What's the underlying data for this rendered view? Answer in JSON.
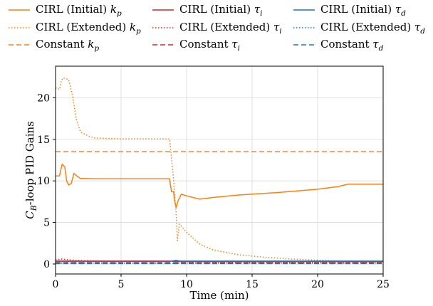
{
  "chart_data": {
    "type": "line",
    "title": "",
    "xlabel": "Time (min)",
    "ylabel": "C_B-loop PID Gains",
    "ylabel_parts": {
      "base": "C",
      "sub": "B",
      "rest": "-loop PID Gains"
    },
    "xlim": [
      0,
      25
    ],
    "ylim": [
      -1.2,
      23.8
    ],
    "xticks": [
      0,
      5,
      10,
      15,
      20,
      25
    ],
    "yticks": [
      0,
      5,
      10,
      15,
      20
    ],
    "grid": true,
    "legend_position": "top",
    "colors": {
      "orange": "#ff7f0e",
      "red": "#d62728",
      "blue": "#1f77b4"
    },
    "series": [
      {
        "name": "CIRL (Initial) k_p",
        "label_base": "CIRL (Initial) ",
        "label_sym": "k",
        "label_sub": "p",
        "color": "#ff7f0e",
        "dash": "solid",
        "x": [
          0,
          0.3,
          0.5,
          0.7,
          0.85,
          1.0,
          1.2,
          1.4,
          1.7,
          1.9,
          2.1,
          3,
          5,
          8.7,
          8.85,
          9.0,
          9.1,
          9.2,
          9.35,
          9.6,
          10,
          11,
          12,
          14,
          17,
          20,
          21.5,
          22.3,
          23,
          25
        ],
        "y": [
          10.6,
          10.6,
          12.0,
          11.7,
          10.0,
          9.5,
          9.7,
          10.9,
          10.5,
          10.3,
          10.3,
          10.25,
          10.25,
          10.25,
          8.7,
          8.7,
          7.5,
          6.8,
          7.6,
          8.4,
          8.2,
          7.8,
          8.0,
          8.3,
          8.6,
          9.0,
          9.3,
          9.6,
          9.6,
          9.6
        ]
      },
      {
        "name": "CIRL (Extended) k_p",
        "label_base": "CIRL (Extended) ",
        "label_sym": "k",
        "label_sub": "p",
        "color": "#ff7f0e",
        "dash": "dotted",
        "x": [
          0,
          0.3,
          0.45,
          0.6,
          0.75,
          1.0,
          1.3,
          1.6,
          1.9,
          2.5,
          3,
          5,
          8.7,
          9.0,
          9.2,
          9.3,
          9.45,
          9.7,
          10,
          11,
          12,
          14,
          16,
          18,
          20,
          22,
          25
        ],
        "y": [
          21.2,
          21.0,
          22.1,
          22.4,
          22.3,
          22.2,
          20.2,
          17.3,
          15.9,
          15.4,
          15.15,
          15.05,
          15.05,
          10.3,
          6.2,
          2.8,
          4.8,
          4.4,
          3.8,
          2.4,
          1.7,
          1.1,
          0.8,
          0.6,
          0.45,
          0.35,
          0.25
        ]
      },
      {
        "name": "Constant k_p",
        "label_base": "Constant ",
        "label_sym": "k",
        "label_sub": "p",
        "color": "#ff7f0e",
        "dash": "dashed",
        "x": [
          0,
          25
        ],
        "y": [
          13.5,
          13.5
        ]
      },
      {
        "name": "CIRL (Initial) τ_i",
        "label_base": "CIRL (Initial) ",
        "label_sym": "τ",
        "label_sub": "i",
        "color": "#d62728",
        "dash": "solid",
        "x": [
          0,
          8.7,
          9.2,
          25
        ],
        "y": [
          0.35,
          0.35,
          0.3,
          0.3
        ]
      },
      {
        "name": "CIRL (Extended) τ_i",
        "label_base": "CIRL (Extended) ",
        "label_sym": "τ",
        "label_sub": "i",
        "color": "#d62728",
        "dash": "dotted",
        "x": [
          0,
          0.5,
          1.0,
          2.0,
          5,
          8.7,
          9.3,
          12,
          25
        ],
        "y": [
          0.5,
          0.6,
          0.5,
          0.4,
          0.35,
          0.35,
          0.3,
          0.25,
          0.2
        ]
      },
      {
        "name": "Constant τ_i",
        "label_base": "Constant ",
        "label_sym": "τ",
        "label_sub": "i",
        "color": "#d62728",
        "dash": "dashed",
        "x": [
          0,
          25
        ],
        "y": [
          0.15,
          0.15
        ]
      },
      {
        "name": "CIRL (Initial) τ_d",
        "label_base": "CIRL (Initial) ",
        "label_sym": "τ",
        "label_sub": "d",
        "color": "#1f77b4",
        "dash": "solid",
        "x": [
          0,
          8.7,
          9.2,
          9.5,
          25
        ],
        "y": [
          0.3,
          0.3,
          0.45,
          0.35,
          0.35
        ]
      },
      {
        "name": "CIRL (Extended) τ_d",
        "label_base": "CIRL (Extended) ",
        "label_sym": "τ",
        "label_sub": "d",
        "color": "#1f77b4",
        "dash": "dotted",
        "x": [
          0,
          25
        ],
        "y": [
          0.1,
          0.1
        ]
      },
      {
        "name": "Constant τ_d",
        "label_base": "Constant ",
        "label_sym": "τ",
        "label_sub": "d",
        "color": "#1f77b4",
        "dash": "dashed",
        "x": [
          0,
          25
        ],
        "y": [
          0.05,
          0.05
        ]
      }
    ]
  }
}
